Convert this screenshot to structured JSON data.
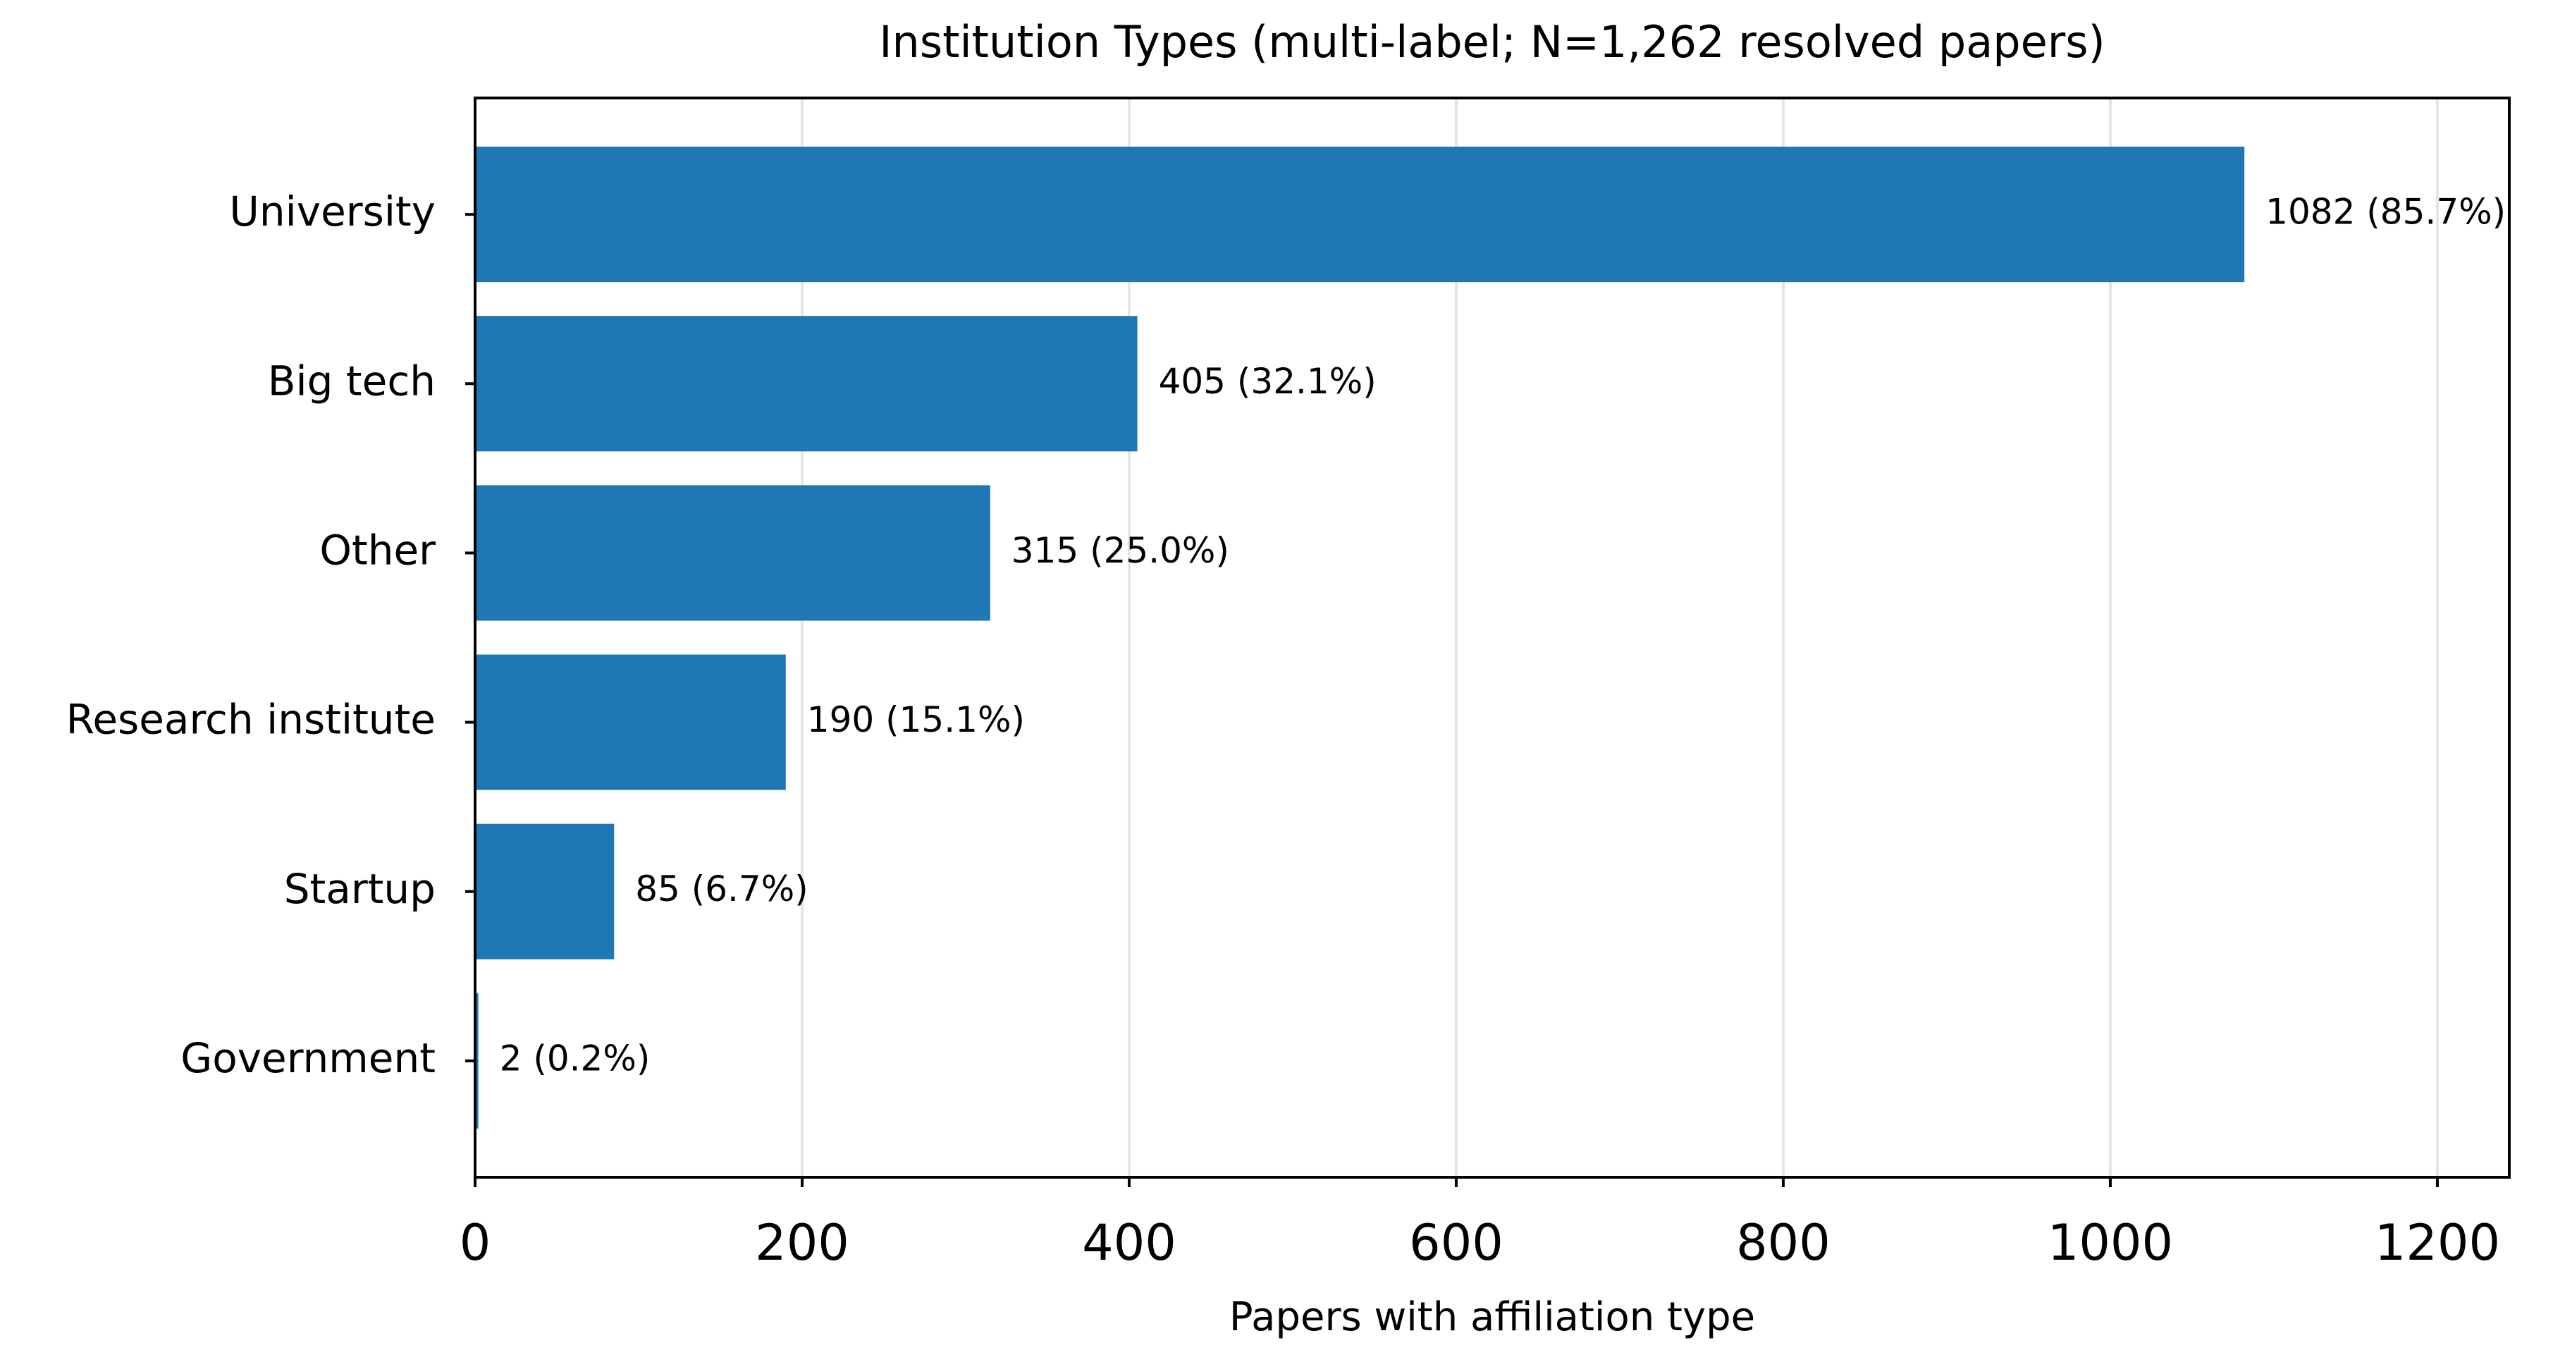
{
  "chart_data": {
    "type": "barh",
    "title": "Institution Types (multi-label; N=1,262 resolved papers)",
    "xlabel": "Papers with affiliation type",
    "categories": [
      "University",
      "Big tech",
      "Other",
      "Research institute",
      "Startup",
      "Government"
    ],
    "values": [
      1082,
      405,
      315,
      190,
      85,
      2
    ],
    "value_labels": [
      "1082 (85.7%)",
      "405 (32.1%)",
      "315 (25.0%)",
      "190 (15.1%)",
      "85 (6.7%)",
      "2 (0.2%)"
    ],
    "color": "#1f77b4",
    "xlim": [
      0,
      1244
    ],
    "xticks": [
      0,
      200,
      400,
      600,
      800,
      1000,
      1200
    ],
    "grid": true
  }
}
